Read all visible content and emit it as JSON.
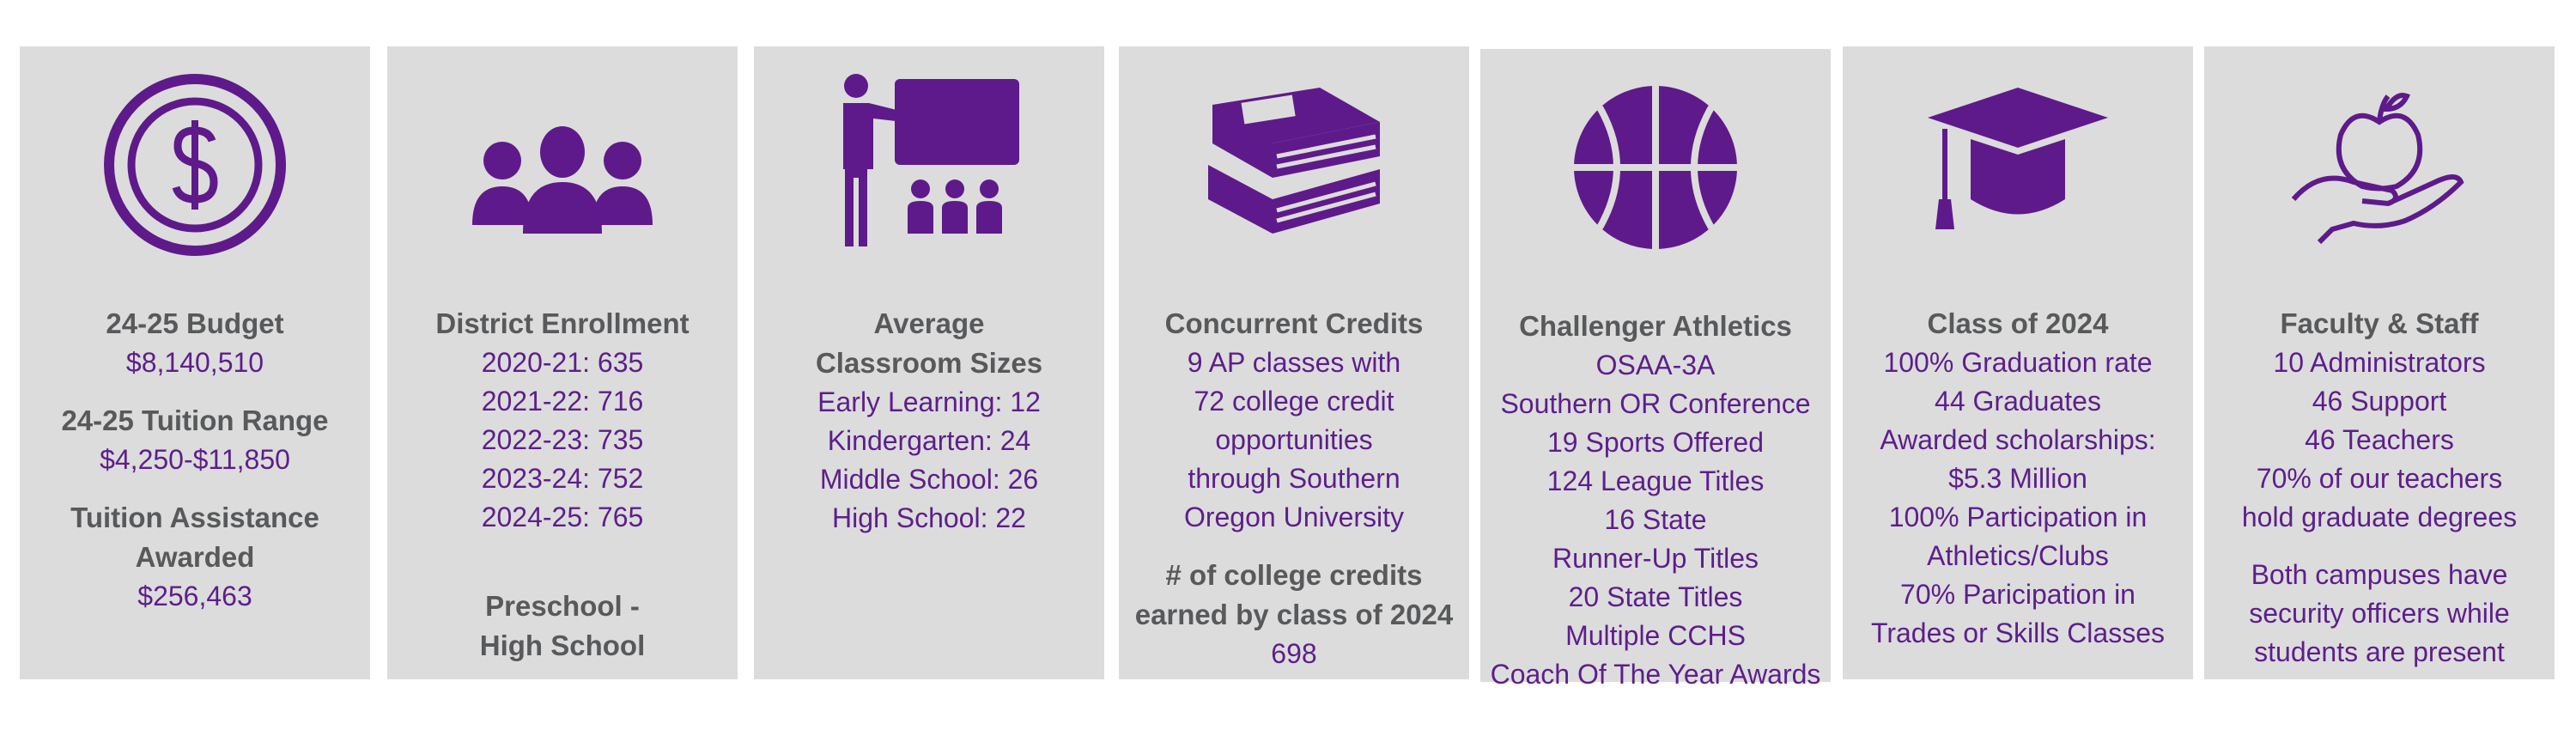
{
  "panels": [
    {
      "blocks": [
        {
          "title": [
            "24-25 Budget"
          ],
          "lines": [
            "$8,140,510"
          ]
        },
        {
          "title": [
            "24-25 Tuition Range"
          ],
          "lines": [
            "$4,250-$11,850"
          ]
        },
        {
          "title": [
            "Tuition Assistance",
            "Awarded"
          ],
          "lines": [
            "$256,463"
          ]
        }
      ]
    },
    {
      "blocks": [
        {
          "title": [
            "District Enrollment"
          ],
          "lines": [
            "2020-21: 635",
            "2021-22: 716",
            "2022-23: 735",
            "2023-24: 752",
            "2024-25: 765"
          ]
        },
        {
          "title": [
            "Preschool -",
            "High School"
          ],
          "lines": []
        }
      ]
    },
    {
      "blocks": [
        {
          "title": [
            "Average",
            "Classroom Sizes"
          ],
          "lines": [
            "Early Learning: 12",
            "Kindergarten: 24",
            "Middle School: 26",
            "High School: 22"
          ]
        }
      ]
    },
    {
      "blocks": [
        {
          "title": [
            "Concurrent Credits"
          ],
          "lines": [
            "9 AP classes with",
            "72 college credit",
            "opportunities",
            "through Southern",
            "Oregon University"
          ]
        },
        {
          "title": [
            "# of college credits",
            "earned by class of 2024"
          ],
          "lines": [
            "698"
          ]
        }
      ]
    },
    {
      "blocks": [
        {
          "title": [
            "Challenger Athletics"
          ],
          "lines": [
            "OSAA-3A",
            "Southern OR Conference",
            "19 Sports Offered",
            "124 League Titles",
            "16 State",
            "Runner-Up Titles",
            "20 State Titles",
            "Multiple CCHS",
            "Coach Of The Year Awards"
          ]
        }
      ]
    },
    {
      "blocks": [
        {
          "title": [
            "Class of 2024"
          ],
          "lines": [
            "100% Graduation rate",
            "44 Graduates",
            "Awarded scholarships:",
            "$5.3 Million",
            "100% Participation in",
            "Athletics/Clubs",
            "70% Paricipation in",
            "Trades or Skills Classes"
          ]
        }
      ]
    },
    {
      "blocks": [
        {
          "title": [
            "Faculty & Staff"
          ],
          "lines": [
            "10 Administrators",
            "46 Support",
            "46 Teachers",
            "70% of our teachers",
            "hold graduate degrees"
          ]
        },
        {
          "lines": [
            "Both campuses have",
            "security officers while",
            "students are present"
          ]
        }
      ]
    }
  ]
}
